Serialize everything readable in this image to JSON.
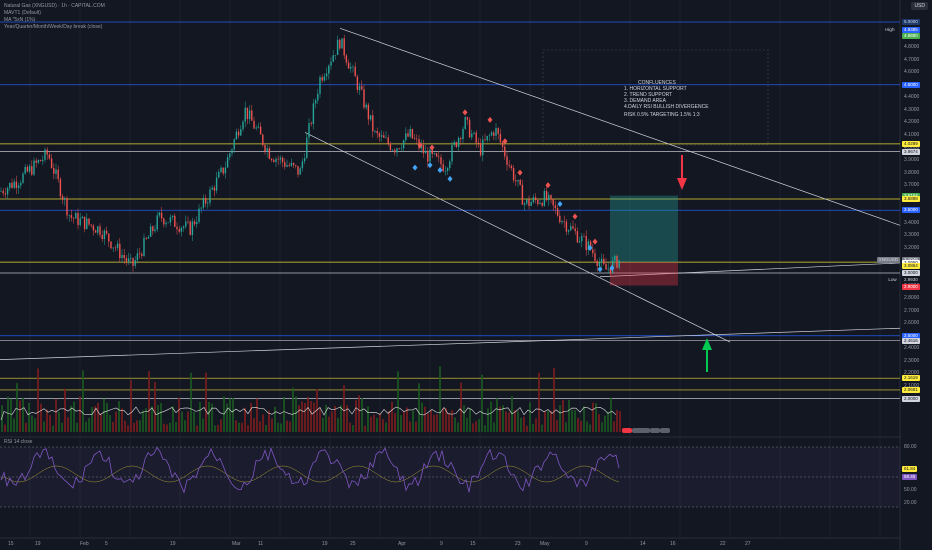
{
  "header": {
    "symbol_line": "Natural Gas (XNGUSD) · 1h · CAPITAL.COM",
    "ind1": "MAVT1 (Default)",
    "ind2": "MA \"5xN (1%)",
    "ind3": "Year/Quarter/Month/Week/Day break (close)",
    "currency": "USD"
  },
  "note": {
    "title": "CONFLUENCES",
    "items": [
      "1. HORIZONTAL SUPPORT",
      "2. TREND SUPPORT",
      "3. DEMAND AREA",
      "4.DAILY RSI BULLISH DIVERGENCE"
    ],
    "risk": "RISK 0.5% TARGETING 1.5% 1:3"
  },
  "rsi": {
    "label": "RSI 14 close",
    "value": "61.84",
    "ma": "58.45",
    "levels": [
      "80.00",
      "50.00",
      "20.00"
    ]
  },
  "price_scale": [
    "5.0000",
    "4.9000",
    "4.8000",
    "4.7000",
    "4.6000",
    "4.5000",
    "4.4000",
    "4.3000",
    "4.2000",
    "4.1000",
    "4.0000",
    "3.9000",
    "3.8000",
    "3.7000",
    "3.6000",
    "3.5000",
    "3.4000",
    "3.3000",
    "3.2000",
    "3.1000",
    "3.0000",
    "2.9000",
    "2.8000",
    "2.7000",
    "2.6000",
    "2.5000",
    "2.4000",
    "2.3000",
    "2.2000",
    "2.1000",
    "2.0000"
  ],
  "price_labels": [
    {
      "text": "5.0000",
      "price": 5.0,
      "bg": "#1e3a6e",
      "fg": "#d1d4dc",
      "prefix": ""
    },
    {
      "text": "4.9385",
      "price": 4.9385,
      "bg": "#2962ff",
      "fg": "#ffffff",
      "prefix": "High"
    },
    {
      "text": "4.8890",
      "price": 4.889,
      "bg": "#4caf50",
      "fg": "#ffffff",
      "prefix": ""
    },
    {
      "text": "4.5000",
      "price": 4.5,
      "bg": "#2962ff",
      "fg": "#ffffff",
      "prefix": ""
    },
    {
      "text": "4.0289",
      "price": 4.0289,
      "bg": "#ffeb3b",
      "fg": "#131722",
      "prefix": ""
    },
    {
      "text": "3.9674",
      "price": 3.9674,
      "bg": "#d1d4dc",
      "fg": "#131722",
      "prefix": ""
    },
    {
      "text": "3.6164",
      "price": 3.6164,
      "bg": "#4caf50",
      "fg": "#ffffff",
      "prefix": ""
    },
    {
      "text": "3.5898",
      "price": 3.5898,
      "bg": "#ffeb3b",
      "fg": "#131722",
      "prefix": ""
    },
    {
      "text": "3.5000",
      "price": 3.5,
      "bg": "#2962ff",
      "fg": "#ffffff",
      "prefix": ""
    },
    {
      "text": "3.1049",
      "price": 3.1049,
      "bg": "#787b86",
      "fg": "#ffffff",
      "prefix": "XNGUSD"
    },
    {
      "text": "3.0950",
      "price": 3.0825,
      "bg": "#ffffff",
      "fg": "#131722",
      "prefix": ""
    },
    {
      "text": "3.0864",
      "price": 3.058,
      "bg": "#ffeb3b",
      "fg": "#131722",
      "prefix": ""
    },
    {
      "text": "3.0000",
      "price": 3.0,
      "bg": "#d1d4dc",
      "fg": "#131722",
      "prefix": ""
    },
    {
      "text": "2.9930",
      "price": 2.945,
      "bg": "#131722",
      "fg": "#d1d4dc",
      "prefix": "Low"
    },
    {
      "text": "2.9000",
      "price": 2.89,
      "bg": "#f23645",
      "fg": "#ffffff",
      "prefix": ""
    },
    {
      "text": "2.5000",
      "price": 2.5,
      "bg": "#2962ff",
      "fg": "#ffffff",
      "prefix": ""
    },
    {
      "text": "2.4616",
      "price": 2.4616,
      "bg": "#d1d4dc",
      "fg": "#131722",
      "prefix": ""
    },
    {
      "text": "2.1619",
      "price": 2.1619,
      "bg": "#ffeb3b",
      "fg": "#131722",
      "prefix": ""
    },
    {
      "text": "2.0681",
      "price": 2.0681,
      "bg": "#ffeb3b",
      "fg": "#131722",
      "prefix": ""
    },
    {
      "text": "2.0000",
      "price": 2.0,
      "bg": "#d1d4dc",
      "fg": "#131722",
      "prefix": ""
    }
  ],
  "time_axis": [
    "15",
    "19",
    "Feb",
    "5",
    "19",
    "Mar",
    "11",
    "19",
    "25",
    "Apr",
    "9",
    "15",
    "23",
    "May",
    "9",
    "14",
    "16",
    "22",
    "27"
  ],
  "levels": [
    {
      "price": 5.0,
      "color": "#2962ff"
    },
    {
      "price": 4.5,
      "color": "#2962ff"
    },
    {
      "price": 4.0289,
      "color": "#ffeb3b"
    },
    {
      "price": 3.9674,
      "color": "#d1d4dc"
    },
    {
      "price": 3.5898,
      "color": "#ffeb3b"
    },
    {
      "price": 3.5,
      "color": "#2962ff"
    },
    {
      "price": 3.0864,
      "color": "#ffeb3b"
    },
    {
      "price": 3.0,
      "color": "#d1d4dc"
    },
    {
      "price": 2.5,
      "color": "#2962ff"
    },
    {
      "price": 2.4616,
      "color": "#d1d4dc"
    },
    {
      "price": 2.1619,
      "color": "#ffeb3b"
    },
    {
      "price": 2.0681,
      "color": "#ffeb3b"
    },
    {
      "price": 2.0,
      "color": "#d1d4dc"
    }
  ],
  "trade": {
    "entry": 3.0864,
    "stop": 2.9,
    "target": 3.6164
  },
  "colors": {
    "bg": "#131722",
    "up": "#26a69a",
    "down": "#ef5350",
    "bull_arrow": "#26a69a",
    "bear_arrow": "#f23645",
    "rsi": "#7e57c2"
  }
}
